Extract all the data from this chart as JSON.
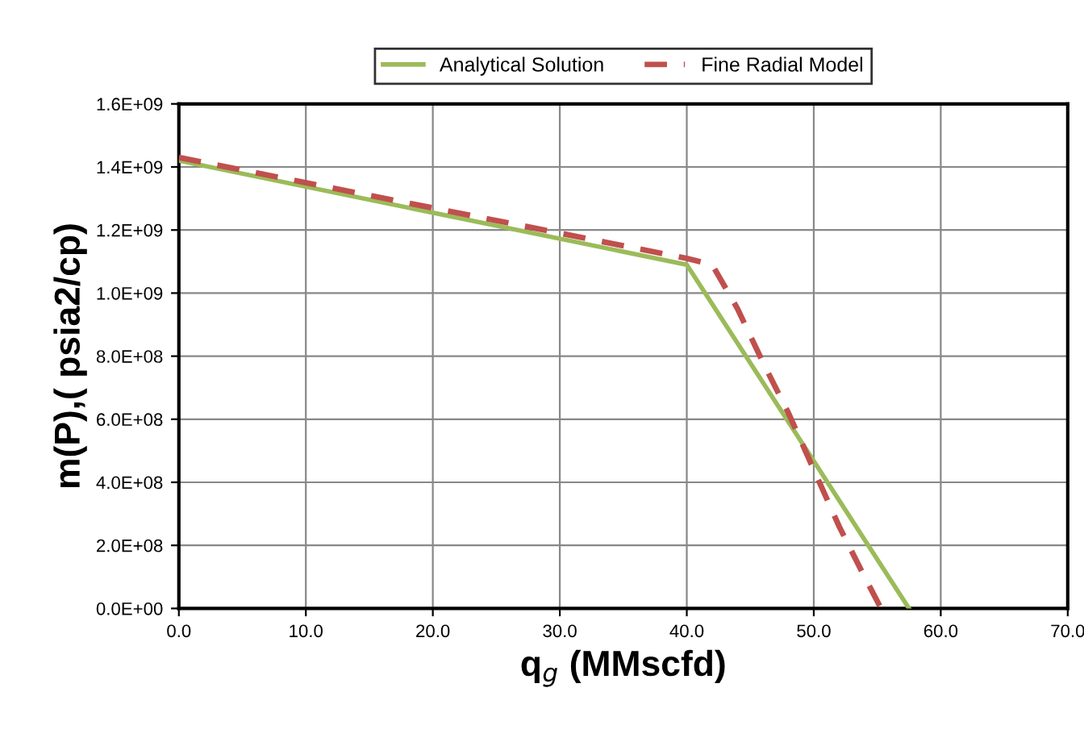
{
  "chart_data": {
    "type": "line",
    "xlabel": "q$_{g}$ (MMscfd)",
    "ylabel": "m(P),( psia2/cp)",
    "xlim": [
      0,
      70
    ],
    "ylim": [
      0,
      1600000000
    ],
    "xticks": [
      {
        "value": 0,
        "label": "0.0"
      },
      {
        "value": 10,
        "label": "10.0"
      },
      {
        "value": 20,
        "label": "20.0"
      },
      {
        "value": 30,
        "label": "30.0"
      },
      {
        "value": 40,
        "label": "40.0"
      },
      {
        "value": 50,
        "label": "50.0"
      },
      {
        "value": 60,
        "label": "60.0"
      },
      {
        "value": 70,
        "label": "70.0"
      }
    ],
    "yticks": [
      {
        "value": 0,
        "label": "0.0E+00"
      },
      {
        "value": 200000000,
        "label": "2.0E+08"
      },
      {
        "value": 400000000,
        "label": "4.0E+08"
      },
      {
        "value": 600000000,
        "label": "6.0E+08"
      },
      {
        "value": 800000000,
        "label": "8.0E+08"
      },
      {
        "value": 1000000000,
        "label": "1.0E+09"
      },
      {
        "value": 1200000000,
        "label": "1.2E+09"
      },
      {
        "value": 1400000000,
        "label": "1.4E+09"
      },
      {
        "value": 1600000000,
        "label": "1.6E+09"
      }
    ],
    "grid": true,
    "legend": "top",
    "marker": "none",
    "series": [
      {
        "name": "Analytical Solution",
        "color": "#9bbb59",
        "line_style": "solid",
        "x": [
          0,
          40,
          57.5
        ],
        "values": [
          1420000000,
          1090000000,
          0
        ]
      },
      {
        "name": "Fine Radial Model",
        "color": "#c0504d",
        "line_style": "dashed",
        "x": [
          0,
          20,
          40,
          42,
          44,
          46,
          48,
          50,
          52,
          54,
          55.3
        ],
        "values": [
          1430000000,
          1270000000,
          1110000000,
          1090000000,
          950000000,
          780000000,
          620000000,
          440000000,
          260000000,
          100000000,
          0
        ]
      }
    ]
  }
}
